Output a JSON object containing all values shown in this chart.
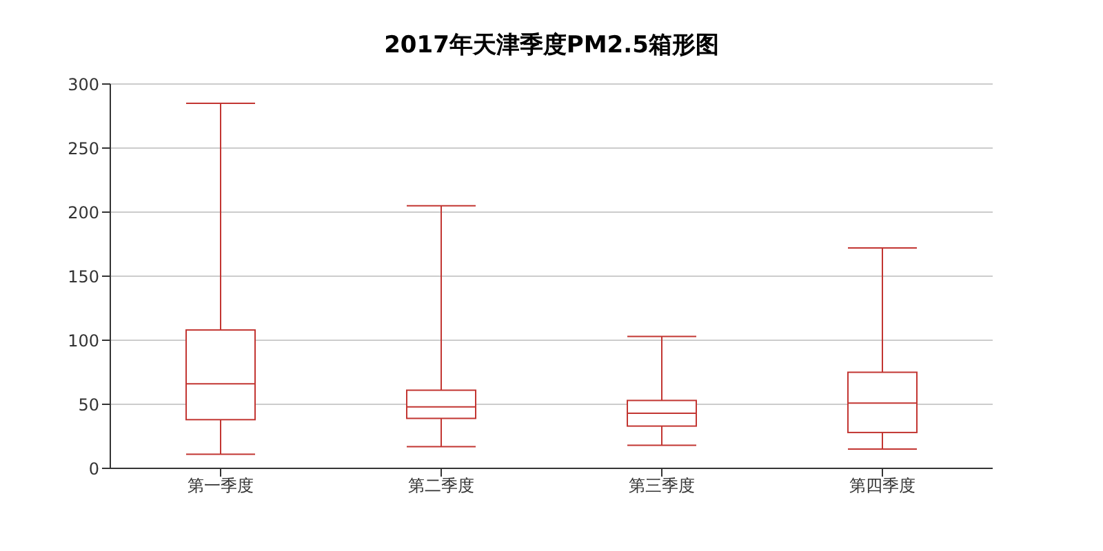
{
  "chart_data": {
    "type": "box",
    "title": "2017年天津季度PM2.5箱形图",
    "categories": [
      "第一季度",
      "第二季度",
      "第三季度",
      "第四季度"
    ],
    "boxes": [
      {
        "low": 11,
        "q1": 38,
        "median": 66,
        "q3": 108,
        "high": 285
      },
      {
        "low": 17,
        "q1": 39,
        "median": 48,
        "q3": 61,
        "high": 205
      },
      {
        "low": 18,
        "q1": 33,
        "median": 43,
        "q3": 53,
        "high": 103
      },
      {
        "low": 15,
        "q1": 28,
        "median": 51,
        "q3": 75,
        "high": 172
      }
    ],
    "color": "#c23531",
    "ylim": [
      0,
      300
    ],
    "yticks": [
      0,
      50,
      100,
      150,
      200,
      250,
      300
    ],
    "grid": "y"
  }
}
